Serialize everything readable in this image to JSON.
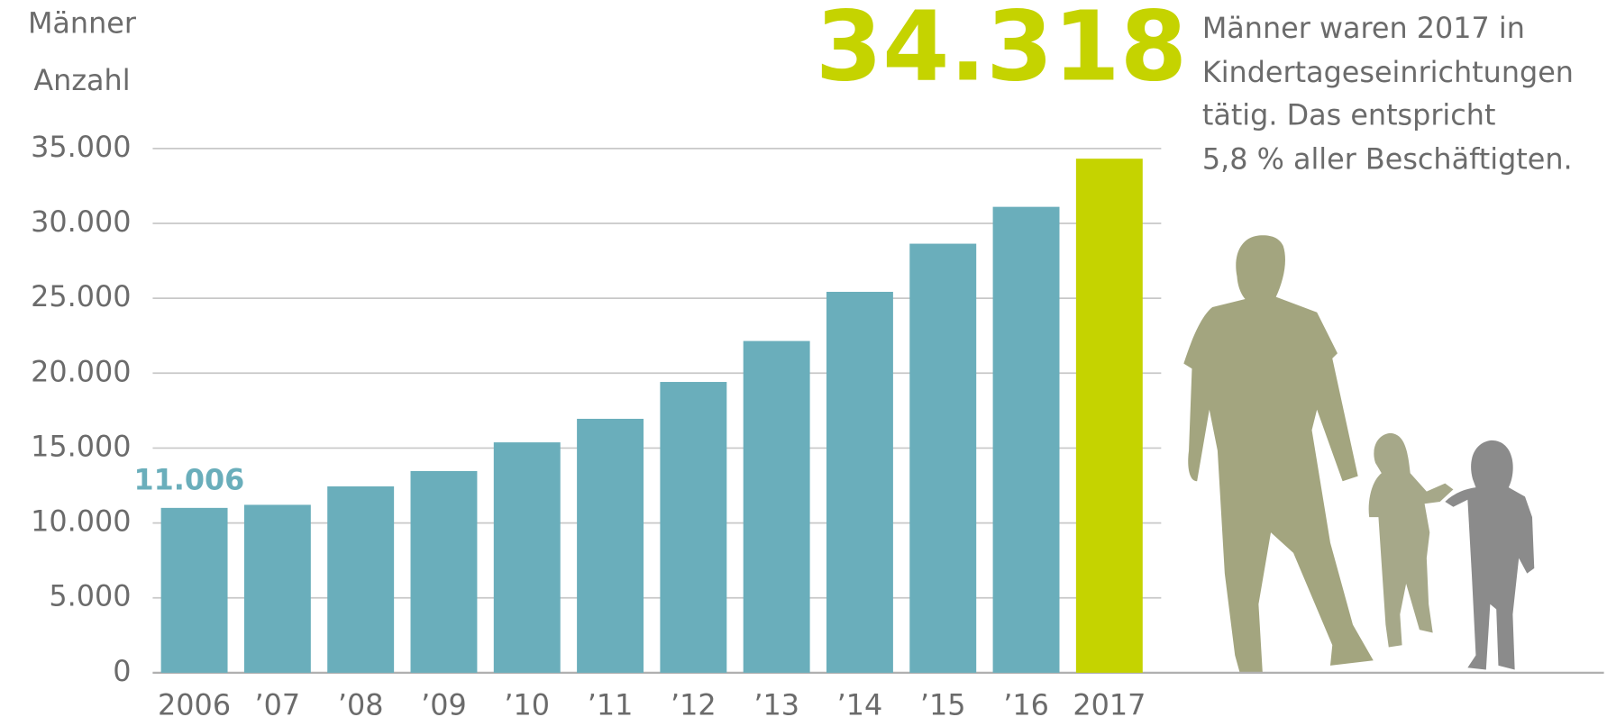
{
  "chart_data": {
    "type": "bar",
    "y_label_lines": [
      "Männer",
      "Anzahl"
    ],
    "annotation_lines": [
      "Männer waren  2017 in",
      "Kindertageseinrichtungen",
      "tätig. Das entspricht",
      "5,8 % aller Beschäftigten."
    ],
    "categories": [
      "2006",
      "’07",
      "’08",
      "’09",
      "’10",
      "’11",
      "’12",
      "’13",
      "’14",
      "’15",
      "’16",
      "2017"
    ],
    "values": [
      11006,
      11211,
      12441,
      13467,
      15381,
      16953,
      19414,
      22148,
      25430,
      28643,
      31104,
      34318
    ],
    "value_labels": [
      "11.006",
      null,
      null,
      null,
      null,
      null,
      null,
      null,
      null,
      null,
      null,
      "34.318"
    ],
    "colors": [
      "#6aaebb",
      "#6aaebb",
      "#6aaebb",
      "#6aaebb",
      "#6aaebb",
      "#6aaebb",
      "#6aaebb",
      "#6aaebb",
      "#6aaebb",
      "#6aaebb",
      "#6aaebb",
      "#c5d300"
    ],
    "ylim": [
      0,
      35000
    ],
    "yticks": [
      0,
      {
        "value": 5000,
        "label": "5.000"
      },
      {
        "value": 10000,
        "label": "10.000"
      },
      {
        "value": 15000,
        "label": "15.000"
      },
      {
        "value": 20000,
        "label": "20.000"
      },
      {
        "value": 25000,
        "label": "25.000"
      },
      {
        "value": 30000,
        "label": "30.000"
      },
      {
        "value": 35000,
        "label": "35.000"
      }
    ],
    "grid": true
  }
}
